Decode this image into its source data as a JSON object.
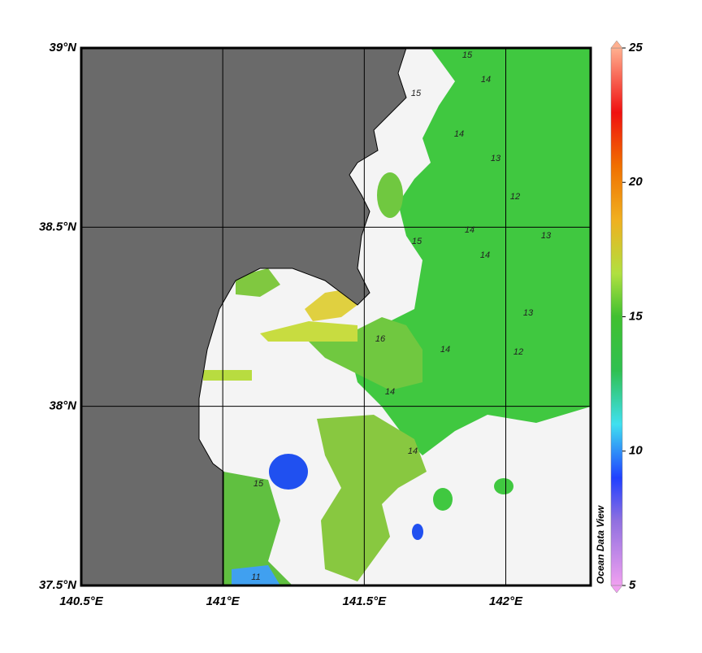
{
  "map": {
    "xlim": [
      140.5,
      142.3
    ],
    "ylim": [
      37.5,
      39
    ],
    "xticks": [
      {
        "value": 140.5,
        "label": "140.5°E"
      },
      {
        "value": 141,
        "label": "141°E"
      },
      {
        "value": 141.5,
        "label": "141.5°E"
      },
      {
        "value": 142,
        "label": "142°E"
      }
    ],
    "yticks": [
      {
        "value": 37.5,
        "label": "37.5°N"
      },
      {
        "value": 38,
        "label": "38°N"
      },
      {
        "value": 38.5,
        "label": "38.5°N"
      },
      {
        "value": 39,
        "label": "39°N"
      }
    ],
    "contour_labels": [
      "15",
      "14",
      "13",
      "14",
      "15",
      "14",
      "13",
      "12",
      "14",
      "16",
      "14",
      "14",
      "13",
      "12",
      "15",
      "15",
      "11",
      "14"
    ]
  },
  "colorbar": {
    "lim": [
      5,
      25
    ],
    "ticks": [
      5,
      10,
      15,
      20,
      25
    ]
  },
  "credit": "Ocean Data View"
}
